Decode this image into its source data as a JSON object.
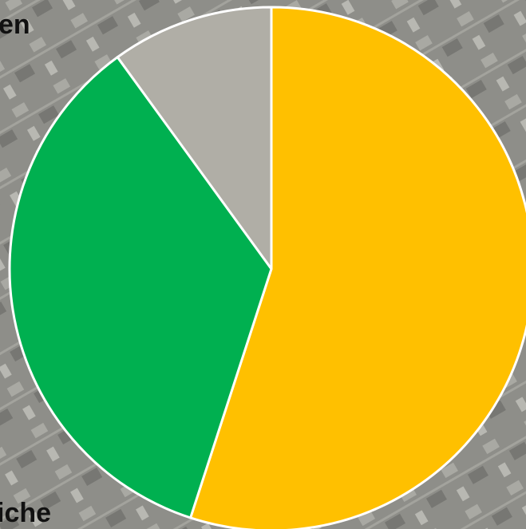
{
  "chart_data": {
    "type": "pie",
    "categories": [
      null,
      null,
      null
    ],
    "values": [
      55,
      35,
      10
    ],
    "colors": [
      "#ffc000",
      "#00b050",
      "#b0aea6"
    ],
    "annotations": [
      "en",
      "iche"
    ]
  }
}
